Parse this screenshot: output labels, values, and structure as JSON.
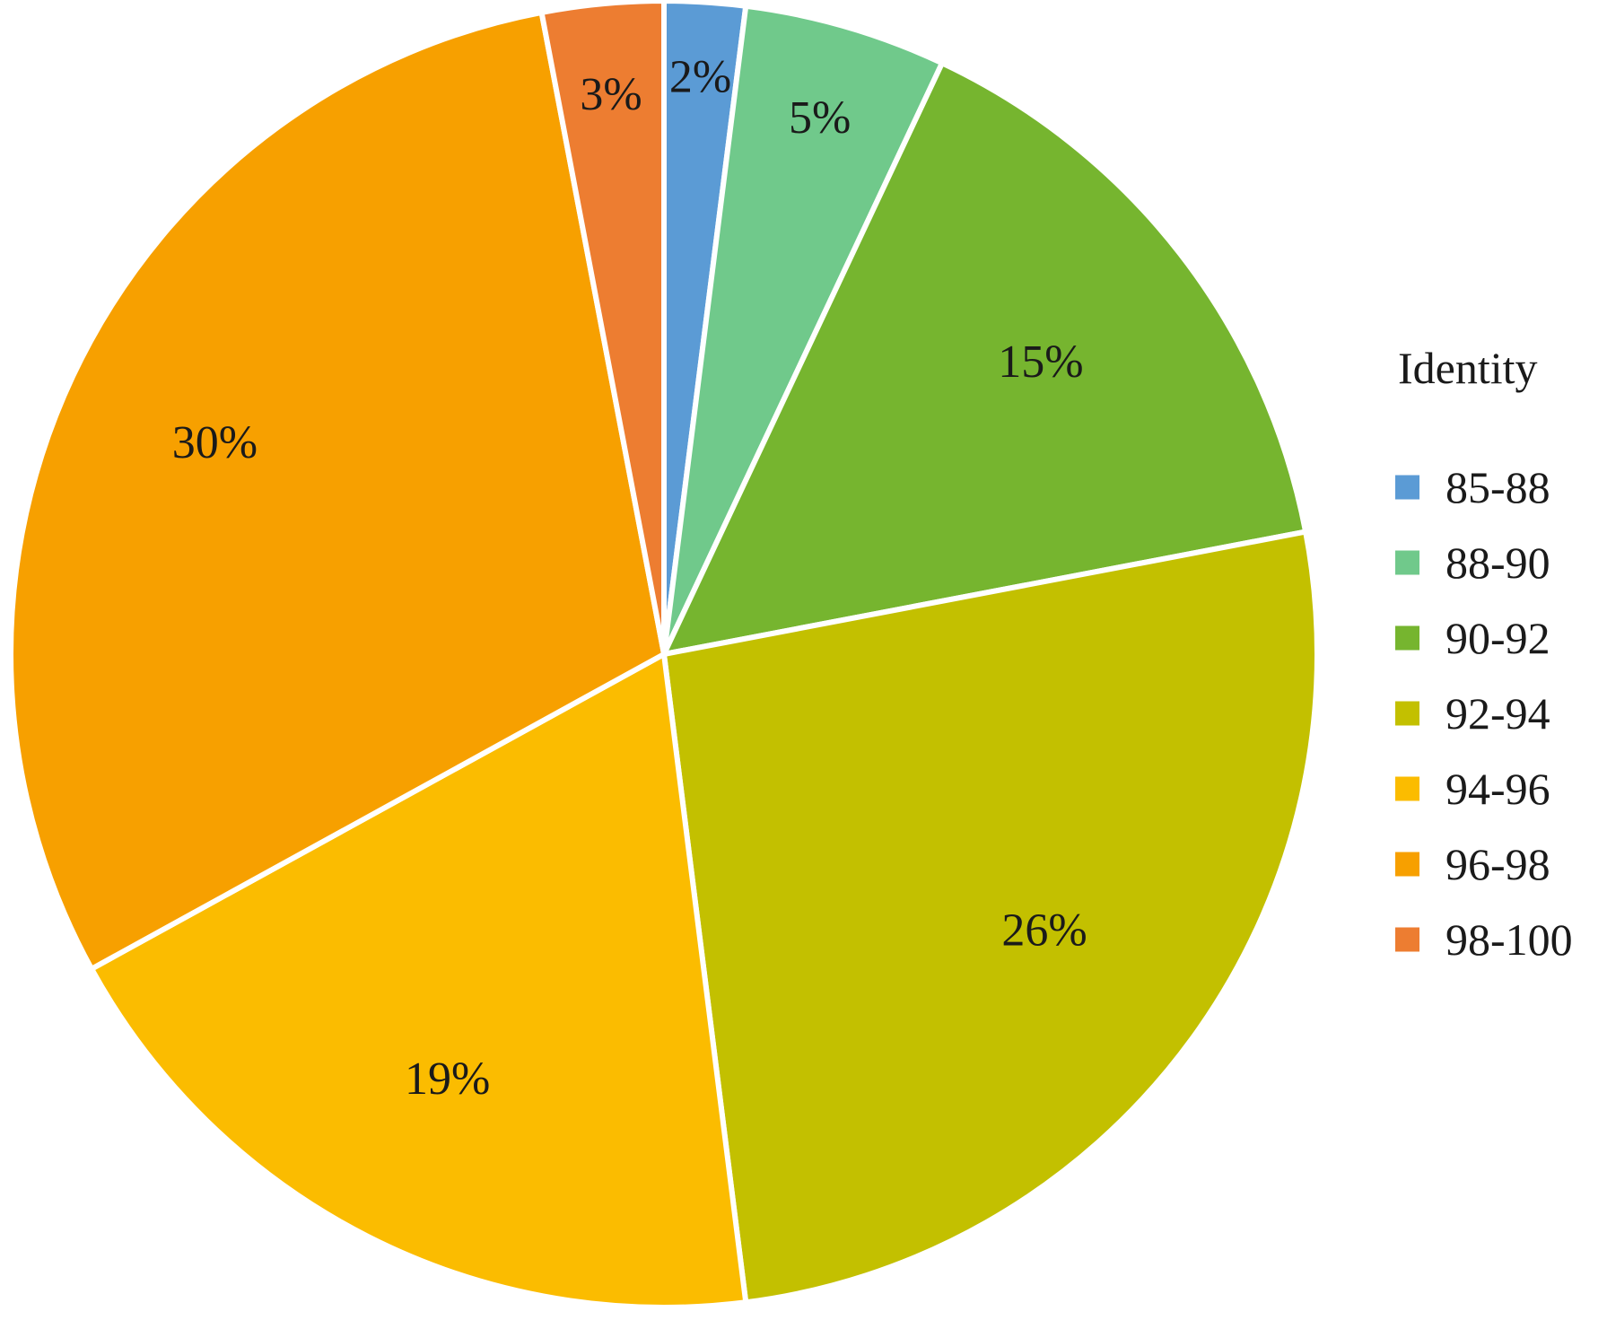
{
  "chart_data": {
    "type": "pie",
    "categories": [
      "85-88",
      "88-90",
      "90-92",
      "92-94",
      "94-96",
      "96-98",
      "98-100"
    ],
    "values": [
      2,
      5,
      15,
      26,
      19,
      30,
      3
    ],
    "value_labels": [
      "2%",
      "5%",
      "15%",
      "26%",
      "19%",
      "30%",
      "3%"
    ],
    "colors": [
      "#5b9bd5",
      "#70c98b",
      "#76b52f",
      "#c3c000",
      "#fbbc00",
      "#f7a000",
      "#ed7d31"
    ],
    "legend": {
      "title": "Identity",
      "placement": "right"
    },
    "start_angle_deg": 0,
    "direction": "clockwise"
  }
}
